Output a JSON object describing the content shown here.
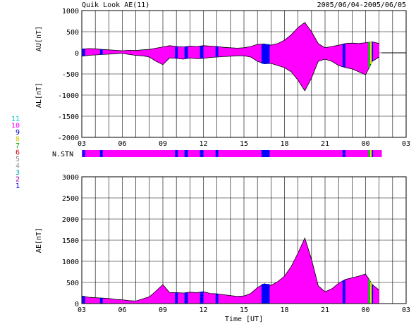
{
  "header": {
    "title": "Quik Look AE(11)",
    "date_range": "2005/06/04-2005/06/05"
  },
  "colors": {
    "magenta": "#ff00ff",
    "blue": "#0000ff",
    "yellow": "#ffff00",
    "green": "#00cc00",
    "grid": "#000000"
  },
  "station_legend": [
    {
      "label": "11",
      "color": "#00cccc"
    },
    {
      "label": "10",
      "color": "#ff00ff"
    },
    {
      "label": "9",
      "color": "#0000cc"
    },
    {
      "label": "8",
      "color": "#cccc00"
    },
    {
      "label": "7",
      "color": "#00aa00"
    },
    {
      "label": "6",
      "color": "#cc0000"
    },
    {
      "label": "5",
      "color": "#888888"
    },
    {
      "label": "4",
      "color": "#999999"
    },
    {
      "label": "3",
      "color": "#00aaaa"
    },
    {
      "label": "2",
      "color": "#aa00aa"
    },
    {
      "label": "1",
      "color": "#0000ff"
    }
  ],
  "nstn_label": "N.STN",
  "x_axis_label": "Time [UT]",
  "chart_data": [
    {
      "type": "area",
      "id": "au-al",
      "ylabel_upper": "AU[nT]",
      "ylabel_lower": "AL[nT]",
      "ylim": [
        -2000,
        1000
      ],
      "yticks": [
        1000,
        500,
        0,
        -500,
        -1000,
        -1500,
        -2000
      ],
      "x_tick_labels": [
        "03",
        "06",
        "09",
        "12",
        "15",
        "18",
        "21",
        "00",
        "03"
      ],
      "xlim_hours": [
        3,
        27
      ],
      "x_hours": [
        3.0,
        3.5,
        4.0,
        4.5,
        5.0,
        5.5,
        6.0,
        6.5,
        7.0,
        7.5,
        8.0,
        8.5,
        9.0,
        9.5,
        10.0,
        10.5,
        11.0,
        11.5,
        12.0,
        12.5,
        13.0,
        13.5,
        14.0,
        14.5,
        15.0,
        15.5,
        16.0,
        16.5,
        17.0,
        17.5,
        18.0,
        18.5,
        19.0,
        19.5,
        20.0,
        20.5,
        21.0,
        21.5,
        22.0,
        22.5,
        23.0,
        23.5,
        24.0,
        24.5,
        25.0
      ],
      "series": [
        {
          "name": "AU",
          "values": [
            90,
            100,
            95,
            80,
            70,
            60,
            50,
            60,
            55,
            70,
            80,
            110,
            140,
            170,
            150,
            140,
            160,
            150,
            170,
            160,
            150,
            130,
            120,
            110,
            120,
            150,
            200,
            210,
            180,
            220,
            300,
            430,
            600,
            720,
            500,
            220,
            120,
            150,
            180,
            220,
            230,
            220,
            240,
            260,
            220
          ]
        },
        {
          "name": "AL",
          "values": [
            -80,
            -60,
            -50,
            -40,
            -30,
            -20,
            -10,
            -40,
            -60,
            -70,
            -100,
            -200,
            -280,
            -120,
            -130,
            -150,
            -120,
            -140,
            -130,
            -110,
            -100,
            -90,
            -80,
            -70,
            -70,
            -100,
            -200,
            -260,
            -250,
            -300,
            -350,
            -450,
            -650,
            -900,
            -600,
            -200,
            -150,
            -200,
            -300,
            -350,
            -380,
            -450,
            -520,
            -200,
            -100
          ]
        }
      ]
    },
    {
      "type": "area",
      "id": "ae",
      "ylabel": "AE[nT]",
      "ylim": [
        0,
        3000
      ],
      "yticks": [
        3000,
        2500,
        2000,
        1500,
        1000,
        500,
        0
      ],
      "x_tick_labels": [
        "03",
        "06",
        "09",
        "12",
        "15",
        "18",
        "21",
        "00",
        "03"
      ],
      "xlim_hours": [
        3,
        27
      ],
      "x_hours": [
        3.0,
        3.5,
        4.0,
        4.5,
        5.0,
        5.5,
        6.0,
        6.5,
        7.0,
        7.5,
        8.0,
        8.5,
        9.0,
        9.5,
        10.0,
        10.5,
        11.0,
        11.5,
        12.0,
        12.5,
        13.0,
        13.5,
        14.0,
        14.5,
        15.0,
        15.5,
        16.0,
        16.5,
        17.0,
        17.5,
        18.0,
        18.5,
        19.0,
        19.5,
        20.0,
        20.5,
        21.0,
        21.5,
        22.0,
        22.5,
        23.0,
        23.5,
        24.0,
        24.5,
        25.0
      ],
      "series": [
        {
          "name": "AE",
          "values": [
            180,
            150,
            140,
            130,
            120,
            100,
            90,
            70,
            60,
            110,
            160,
            300,
            450,
            260,
            260,
            250,
            270,
            260,
            280,
            240,
            230,
            210,
            190,
            170,
            180,
            240,
            380,
            470,
            430,
            520,
            650,
            880,
            1200,
            1550,
            1050,
            420,
            280,
            350,
            480,
            570,
            610,
            650,
            700,
            450,
            320
          ]
        }
      ]
    }
  ],
  "station_bars": [
    {
      "start": 3.05,
      "end": 3.25,
      "color": "#0000ff"
    },
    {
      "start": 4.35,
      "end": 4.55,
      "color": "#0000ff"
    },
    {
      "start": 9.9,
      "end": 10.1,
      "color": "#0000ff"
    },
    {
      "start": 10.6,
      "end": 10.85,
      "color": "#0000ff"
    },
    {
      "start": 11.75,
      "end": 12.0,
      "color": "#0000ff"
    },
    {
      "start": 12.9,
      "end": 13.1,
      "color": "#0000ff"
    },
    {
      "start": 16.3,
      "end": 16.9,
      "color": "#0000ff"
    },
    {
      "start": 22.3,
      "end": 22.5,
      "color": "#0000ff"
    },
    {
      "start": 24.2,
      "end": 24.35,
      "color": "#00cc00"
    },
    {
      "start": 24.35,
      "end": 24.45,
      "color": "#ffff00"
    },
    {
      "start": 24.45,
      "end": 24.55,
      "color": "#0000ff"
    }
  ]
}
